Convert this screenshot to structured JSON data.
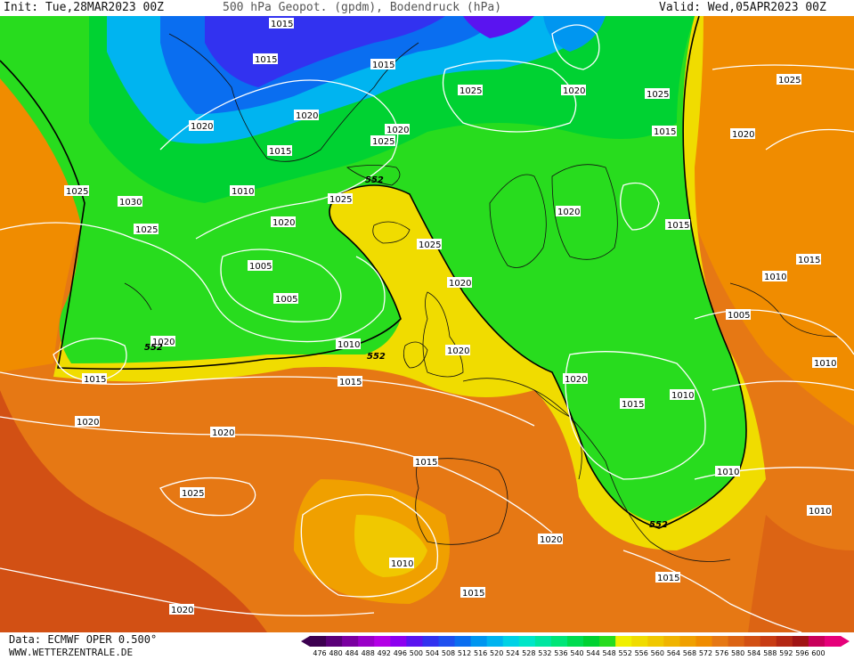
{
  "header": {
    "init": "Init: Tue,28MAR2023 00Z",
    "title": "500 hPa Geopot. (gpdm), Bodendruck (hPa)",
    "valid": "Valid: Wed,05APR2023 00Z"
  },
  "footer": {
    "data_source": "Data: ECMWF OPER 0.500°",
    "website": "WWW.WETTERZENTRALE.DE"
  },
  "legend": {
    "ticks": [
      "476",
      "480",
      "484",
      "488",
      "492",
      "496",
      "500",
      "504",
      "508",
      "512",
      "516",
      "520",
      "524",
      "528",
      "532",
      "536",
      "540",
      "544",
      "548",
      "552",
      "556",
      "560",
      "564",
      "568",
      "572",
      "576",
      "580",
      "584",
      "588",
      "592",
      "596",
      "600"
    ],
    "colors": [
      "#3c0050",
      "#5a0078",
      "#7a00a0",
      "#9a00c8",
      "#b400e6",
      "#8c00f0",
      "#5a14f0",
      "#3232f0",
      "#1e50f0",
      "#0a6ef0",
      "#0096f0",
      "#00b4f0",
      "#00d2e6",
      "#00e6c8",
      "#00e6a0",
      "#00e678",
      "#00dc50",
      "#00d232",
      "#28dc1e",
      "#f0f000",
      "#f0dc00",
      "#f0c800",
      "#f0b400",
      "#f0a000",
      "#f08c00",
      "#e67814",
      "#dc6414",
      "#d25014",
      "#c83c14",
      "#b42814",
      "#a01414",
      "#c8005a",
      "#e6007a"
    ]
  },
  "isobars": [
    "1015",
    "1015",
    "1015",
    "1025",
    "1020",
    "1025",
    "1020",
    "1015",
    "1020",
    "1025",
    "1020",
    "1025",
    "1015",
    "1010",
    "1025",
    "1030",
    "1025",
    "1020",
    "1020",
    "1005",
    "1005",
    "1025",
    "1020",
    "1025",
    "1015",
    "1020",
    "1020",
    "1015",
    "1010",
    "1005",
    "1010",
    "1015",
    "1015",
    "1010",
    "1015",
    "1020",
    "1020",
    "1020",
    "1015",
    "1020",
    "1010",
    "1010",
    "1025",
    "1010",
    "1020",
    "1015",
    "1010",
    "1020",
    "1015"
  ],
  "contour_labels": [
    "552",
    "552",
    "552",
    "552"
  ]
}
